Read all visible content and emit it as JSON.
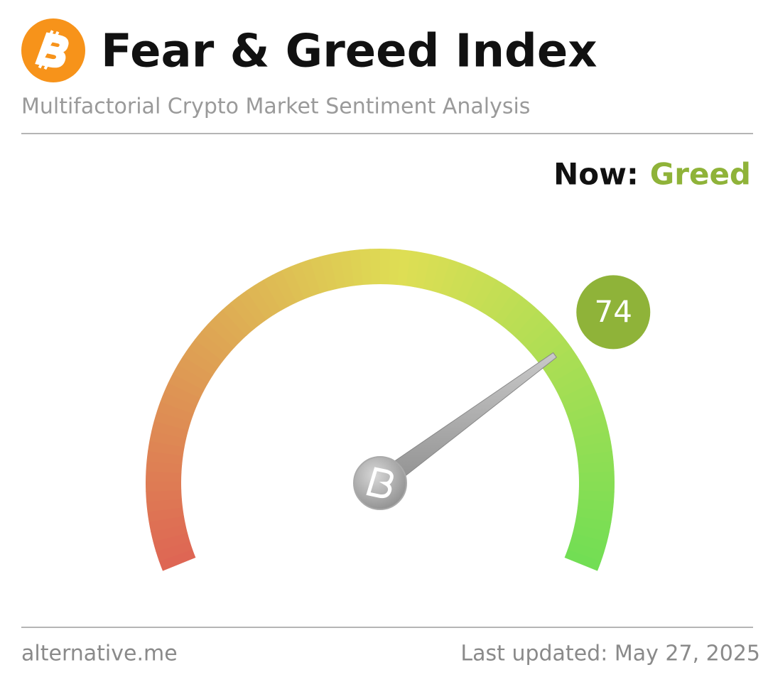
{
  "header": {
    "title": "Fear & Greed Index",
    "subtitle": "Multifactorial Crypto Market Sentiment Analysis"
  },
  "chart_data": {
    "type": "gauge",
    "status_label": "Now:",
    "status": "Greed",
    "value": 74,
    "ylim": [
      0,
      100
    ],
    "color": "#8fb339"
  },
  "footer": {
    "source": "alternative.me",
    "updated": "Last updated: May 27, 2025"
  }
}
